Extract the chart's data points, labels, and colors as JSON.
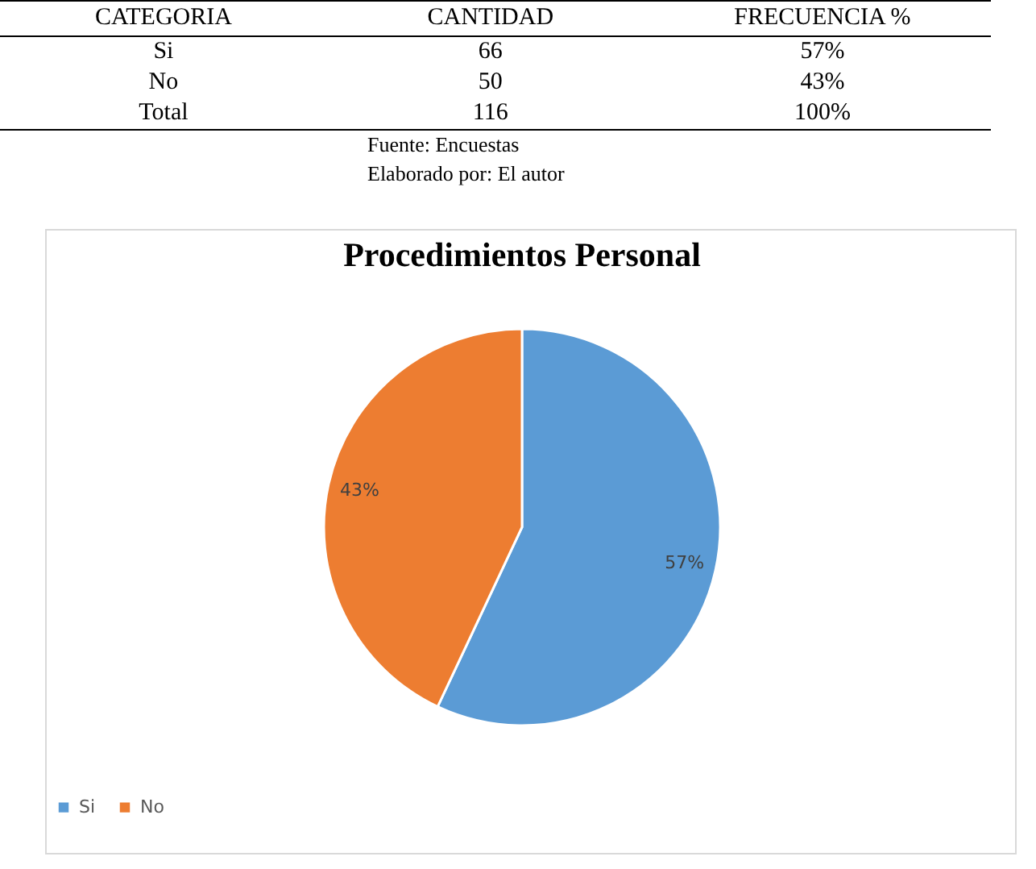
{
  "chart_data": [
    {
      "type": "other",
      "annotations": [
        "CATEGORIA",
        "CANTIDAD",
        "FRECUENCIA %",
        "Si",
        "66",
        "57%",
        "No",
        "50",
        "43%",
        "Total",
        "116",
        "100%",
        "Fuente: Encuestas",
        "Elaborado por: El autor"
      ]
    },
    {
      "type": "pie",
      "title": "Procedimientos Personal",
      "categories": [
        "Si",
        "No"
      ],
      "values": [
        57,
        43
      ],
      "colors": [
        "#5b9bd5",
        "#ed7d31"
      ],
      "value_labels": [
        "57%",
        "43%"
      ],
      "legend": "bottom"
    }
  ]
}
